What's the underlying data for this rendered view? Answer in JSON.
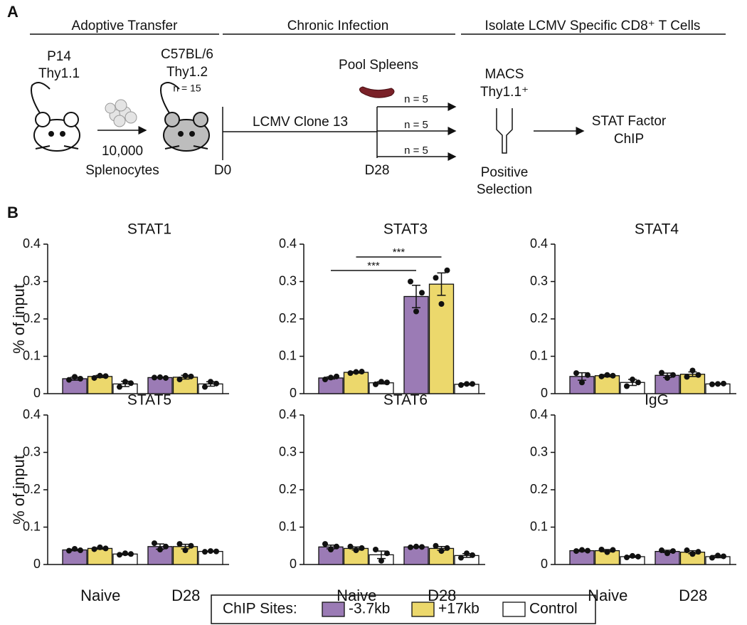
{
  "panel_labels": [
    "A",
    "B"
  ],
  "panel_a": {
    "headers": [
      "Adoptive Transfer",
      "Chronic Infection",
      "Isolate LCMV Specific CD8⁺ T Cells"
    ],
    "donor": [
      "P14",
      "Thy1.1"
    ],
    "recipient": [
      "C57BL/6",
      "Thy1.2",
      "n = 15"
    ],
    "transfer": [
      "10,000",
      "Splenocytes"
    ],
    "infection": "LCMV Clone 13",
    "days": [
      "D0",
      "D28"
    ],
    "pool": "Pool Spleens",
    "splits": [
      "n = 5",
      "n = 5",
      "n = 5"
    ],
    "macs": [
      "MACS",
      "Thy1.1⁺"
    ],
    "selection": [
      "Positive",
      "Selection"
    ],
    "chip": [
      "STAT Factor",
      "ChIP"
    ]
  },
  "legend_title": "ChIP Sites:",
  "chart_data": [
    {
      "type": "bar",
      "title": "STAT1",
      "ylabel": "% of input",
      "categories": [
        null,
        null
      ],
      "ylim": [
        0,
        0.4
      ],
      "yticks": [
        0,
        0.1,
        0.2,
        0.3,
        0.4
      ],
      "series": [
        {
          "name": "-3.7kb",
          "color": "#9b7bb5",
          "values": [
            0.04,
            0.043
          ],
          "errors": [
            0.004,
            0.001
          ],
          "points": [
            [
              0.037,
              0.045,
              0.04
            ],
            [
              0.043,
              0.044,
              0.042
            ]
          ]
        },
        {
          "name": "+17kb",
          "color": "#ecd86c",
          "values": [
            0.046,
            0.044
          ],
          "errors": [
            0.003,
            0.005
          ],
          "points": [
            [
              0.042,
              0.048,
              0.047
            ],
            [
              0.038,
              0.048,
              0.046
            ]
          ]
        },
        {
          "name": "Control",
          "color": "#ffffff",
          "values": [
            0.026,
            0.026
          ],
          "errors": [
            0.007,
            0.006
          ],
          "points": [
            [
              0.018,
              0.032,
              0.028
            ],
            [
              0.018,
              0.032,
              0.027
            ]
          ]
        }
      ]
    },
    {
      "type": "bar",
      "title": "STAT3",
      "categories": [
        null,
        null
      ],
      "ylim": [
        0,
        0.4
      ],
      "yticks": [
        0,
        0.1,
        0.2,
        0.3,
        0.4
      ],
      "annotations": [
        "***",
        "***"
      ],
      "series": [
        {
          "name": "-3.7kb",
          "color": "#9b7bb5",
          "values": [
            0.042,
            0.26
          ],
          "errors": [
            0.003,
            0.03
          ],
          "points": [
            [
              0.038,
              0.043,
              0.046
            ],
            [
              0.3,
              0.22,
              0.27
            ]
          ]
        },
        {
          "name": "+17kb",
          "color": "#ecd86c",
          "values": [
            0.057,
            0.293
          ],
          "errors": [
            0.002,
            0.03
          ],
          "points": [
            [
              0.055,
              0.058,
              0.059
            ],
            [
              0.31,
              0.24,
              0.33
            ]
          ]
        },
        {
          "name": "Control",
          "color": "#ffffff",
          "values": [
            0.029,
            0.025
          ],
          "errors": [
            0.003,
            0.002
          ],
          "points": [
            [
              0.025,
              0.032,
              0.03
            ],
            [
              0.023,
              0.026,
              0.026
            ]
          ]
        }
      ]
    },
    {
      "type": "bar",
      "title": "STAT4",
      "categories": [
        null,
        null
      ],
      "ylim": [
        0,
        0.4
      ],
      "yticks": [
        0,
        0.1,
        0.2,
        0.3,
        0.4
      ],
      "series": [
        {
          "name": "-3.7kb",
          "color": "#9b7bb5",
          "values": [
            0.046,
            0.049
          ],
          "errors": [
            0.01,
            0.006
          ],
          "points": [
            [
              0.055,
              0.03,
              0.05
            ],
            [
              0.056,
              0.042,
              0.05
            ]
          ]
        },
        {
          "name": "+17kb",
          "color": "#ecd86c",
          "values": [
            0.048,
            0.052
          ],
          "errors": [
            0.003,
            0.006
          ],
          "points": [
            [
              0.046,
              0.05,
              0.048
            ],
            [
              0.045,
              0.062,
              0.05
            ]
          ]
        },
        {
          "name": "Control",
          "color": "#ffffff",
          "values": [
            0.03,
            0.026
          ],
          "errors": [
            0.008,
            0.001
          ],
          "points": [
            [
              0.02,
              0.038,
              0.03
            ],
            [
              0.025,
              0.026,
              0.027
            ]
          ]
        }
      ]
    },
    {
      "type": "bar",
      "title": "STAT5",
      "ylabel": "% of input",
      "categories": [
        "Naive",
        "D28"
      ],
      "ylim": [
        0,
        0.4
      ],
      "yticks": [
        0,
        0.1,
        0.2,
        0.3,
        0.4
      ],
      "series": [
        {
          "name": "-3.7kb",
          "color": "#9b7bb5",
          "values": [
            0.039,
            0.048
          ],
          "errors": [
            0.002,
            0.007
          ],
          "points": [
            [
              0.037,
              0.042,
              0.038
            ],
            [
              0.057,
              0.04,
              0.048
            ]
          ]
        },
        {
          "name": "+17kb",
          "color": "#ecd86c",
          "values": [
            0.043,
            0.048
          ],
          "errors": [
            0.002,
            0.006
          ],
          "points": [
            [
              0.041,
              0.046,
              0.043
            ],
            [
              0.055,
              0.038,
              0.05
            ]
          ]
        },
        {
          "name": "Control",
          "color": "#ffffff",
          "values": [
            0.028,
            0.035
          ],
          "errors": [
            0.002,
            0.001
          ],
          "points": [
            [
              0.026,
              0.03,
              0.028
            ],
            [
              0.034,
              0.036,
              0.035
            ]
          ]
        }
      ]
    },
    {
      "type": "bar",
      "title": "STAT6",
      "categories": [
        "Naive",
        "D28"
      ],
      "ylim": [
        0,
        0.4
      ],
      "yticks": [
        0,
        0.1,
        0.2,
        0.3,
        0.4
      ],
      "series": [
        {
          "name": "-3.7kb",
          "color": "#9b7bb5",
          "values": [
            0.047,
            0.047
          ],
          "errors": [
            0.005,
            0.001
          ],
          "points": [
            [
              0.055,
              0.04,
              0.048
            ],
            [
              0.046,
              0.048,
              0.047
            ]
          ]
        },
        {
          "name": "+17kb",
          "color": "#ecd86c",
          "values": [
            0.043,
            0.043
          ],
          "errors": [
            0.004,
            0.005
          ],
          "points": [
            [
              0.048,
              0.038,
              0.044
            ],
            [
              0.05,
              0.036,
              0.044
            ]
          ]
        },
        {
          "name": "Control",
          "color": "#ffffff",
          "values": [
            0.026,
            0.024
          ],
          "errors": [
            0.01,
            0.005
          ],
          "points": [
            [
              0.04,
              0.01,
              0.03
            ],
            [
              0.018,
              0.03,
              0.025
            ]
          ]
        }
      ]
    },
    {
      "type": "bar",
      "title": "IgG",
      "categories": [
        "Naive",
        "D28"
      ],
      "ylim": [
        0,
        0.4
      ],
      "yticks": [
        0,
        0.1,
        0.2,
        0.3,
        0.4
      ],
      "series": [
        {
          "name": "-3.7kb",
          "color": "#9b7bb5",
          "values": [
            0.037,
            0.035
          ],
          "errors": [
            0.002,
            0.003
          ],
          "points": [
            [
              0.036,
              0.039,
              0.037
            ],
            [
              0.038,
              0.03,
              0.036
            ]
          ]
        },
        {
          "name": "+17kb",
          "color": "#ecd86c",
          "values": [
            0.037,
            0.033
          ],
          "errors": [
            0.003,
            0.004
          ],
          "points": [
            [
              0.04,
              0.033,
              0.039
            ],
            [
              0.038,
              0.028,
              0.034
            ]
          ]
        },
        {
          "name": "Control",
          "color": "#ffffff",
          "values": [
            0.021,
            0.021
          ],
          "errors": [
            0.002,
            0.003
          ],
          "points": [
            [
              0.019,
              0.023,
              0.021
            ],
            [
              0.018,
              0.024,
              0.022
            ]
          ]
        }
      ]
    }
  ]
}
